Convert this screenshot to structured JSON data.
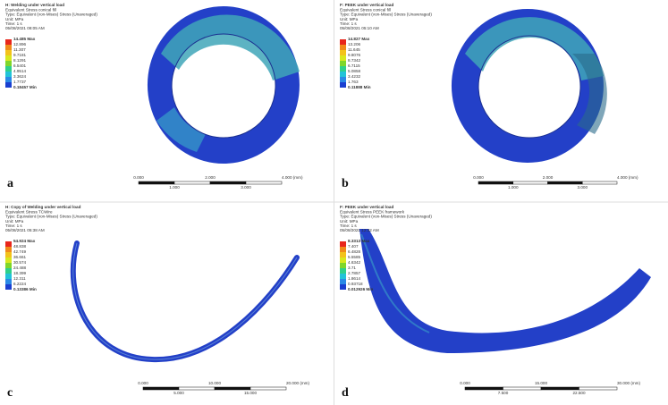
{
  "panels": [
    {
      "letter": "a",
      "header": [
        "H: Welding under vertical load",
        "Equivalent Stress conical fill",
        "Type: Equivalent (von-Mises) Stress (Unaveraged)",
        "Unit: MPa",
        "Time: 1 s",
        "05/08/2021 08:05 AM"
      ],
      "legend": [
        "14.485 Max",
        "12.896",
        "11.307",
        "9.7181",
        "8.1291",
        "6.5401",
        "4.9514",
        "3.3624",
        "1.7737",
        "0.18457 Min"
      ],
      "scale": {
        "top": [
          "0.000",
          "2.000",
          "4.000 (mm)"
        ],
        "bottom": [
          "1.000",
          "3.000"
        ]
      }
    },
    {
      "letter": "b",
      "header": [
        "F: PEEK under vertical load",
        "Equivalent Stress conical fill",
        "Type: Equivalent (von-Mises) Stress (Unaveraged)",
        "Unit: MPa",
        "Time: 1 s",
        "05/08/2021 05:10 AM"
      ],
      "legend": [
        "14.827 Max",
        "13.206",
        "11.645",
        "9.8076",
        "8.7342",
        "6.7115",
        "5.0858",
        "3.4232",
        "1.763",
        "0.11888 Min"
      ],
      "scale": {
        "top": [
          "0.000",
          "2.000",
          "4.000 (mm)"
        ],
        "bottom": [
          "1.000",
          "3.000"
        ]
      }
    },
    {
      "letter": "c",
      "header": [
        "H: Copy of Welding under vertical load",
        "Equivalent Stress TCWire",
        "Type: Equivalent (von-Mises) Stress (Unaveraged)",
        "Unit: MPa",
        "Time: 1 s",
        "05/08/2021 05:38 AM"
      ],
      "legend": [
        "54.924 Max",
        "48.838",
        "42.749",
        "36.661",
        "30.574",
        "24.488",
        "18.399",
        "12.311",
        "6.2224",
        "0.13386 Min"
      ],
      "scale": {
        "top": [
          "0.000",
          "10.000",
          "20.000 (mm)"
        ],
        "bottom": [
          "5.000",
          "15.000"
        ]
      }
    },
    {
      "letter": "d",
      "header": [
        "F: PEEK under vertical load",
        "Equivalent Stress PEEK framework",
        "Type: Equivalent (von-Mises) Stress (Unaveraged)",
        "Unit: MPa",
        "Time: 1 s",
        "05/08/2021 12:32 AM"
      ],
      "legend": [
        "8.3313 Max",
        "7.407",
        "6.4828",
        "5.5585",
        "4.6342",
        "3.71",
        "2.7857",
        "1.8614",
        "0.93718",
        "0.012926 Min"
      ],
      "scale": {
        "top": [
          "0.000",
          "15.000",
          "30.000 (mm)"
        ],
        "bottom": [
          "7.500",
          "22.500"
        ]
      }
    }
  ]
}
